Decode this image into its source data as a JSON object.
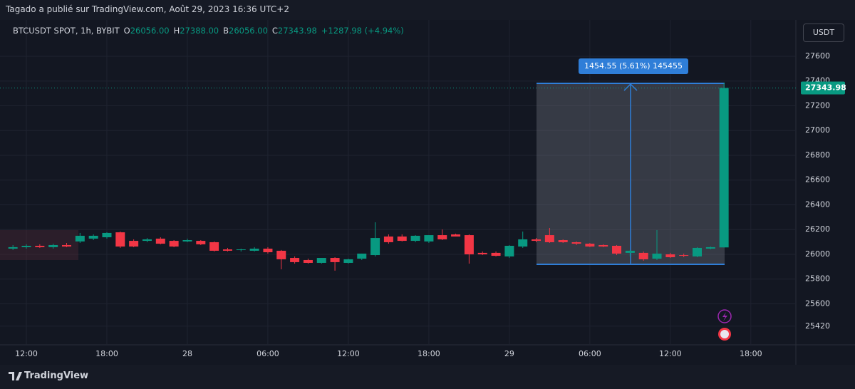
{
  "chart_data": {
    "type": "candlestick",
    "attribution": "Tagado a publié sur TradingView.com, Août 29, 2023 16:36 UTC+2",
    "symbol": "BTCUSDT SPOT, 1h, BYBIT",
    "ohlc_legend": [
      {
        "label": "O",
        "value": "26056.00"
      },
      {
        "label": "H",
        "value": "27388.00"
      },
      {
        "label": "B",
        "value": "26056.00"
      },
      {
        "label": "C",
        "value": "27343.98"
      }
    ],
    "change": "+1287.98 (+4.94%)",
    "currency": "USDT",
    "measure_label": "1454.55 (5.61%) 145455",
    "brand": "TradingView",
    "up_color": "#089981",
    "down_color": "#f23645",
    "grid": true,
    "ylim": [
      25292,
      27882
    ],
    "yticks": [
      25420,
      25600,
      25800,
      26000,
      26200,
      26400,
      26600,
      26800,
      27000,
      27200,
      27400,
      27600
    ],
    "categories": [
      null,
      "12:00",
      null,
      null,
      null,
      null,
      null,
      "18:00",
      null,
      null,
      null,
      null,
      null,
      "28",
      null,
      null,
      null,
      null,
      null,
      "06:00",
      null,
      null,
      null,
      null,
      null,
      "12:00",
      null,
      null,
      null,
      null,
      null,
      "18:00",
      null,
      null,
      null,
      null,
      null,
      "29",
      null,
      null,
      null,
      null,
      null,
      "06:00",
      null,
      null,
      null,
      null,
      null,
      "12:00",
      null,
      null,
      null,
      null,
      null,
      "18:00",
      null,
      null
    ],
    "open": [
      26046,
      26058,
      26069,
      26058,
      26075,
      26104,
      26127,
      26138,
      26178,
      26109,
      26109,
      26127,
      26109,
      26104,
      26109,
      26098,
      26040,
      26035,
      26029,
      26046,
      26029,
      25971,
      25954,
      25931,
      25971,
      25931,
      25965,
      25994,
      26144,
      26144,
      26109,
      26104,
      26155,
      26161,
      26155,
      26012,
      26012,
      25983,
      26063,
      26121,
      26155,
      26115,
      26098,
      26086,
      26075,
      26069,
      26012,
      26012,
      25965,
      26000,
      25994,
      25983,
      26046,
      26056.0,
      null,
      null,
      null,
      null
    ],
    "high": [
      26075,
      26081,
      26081,
      26086,
      26092,
      26173,
      26161,
      26178,
      26184,
      26121,
      26132,
      26138,
      26115,
      26127,
      26115,
      26104,
      26052,
      26046,
      26058,
      26058,
      26035,
      25983,
      25965,
      25971,
      25977,
      25965,
      26006,
      26259,
      26161,
      26161,
      26155,
      26155,
      26201,
      26167,
      26161,
      26023,
      26023,
      26075,
      26184,
      26132,
      26213,
      26121,
      26104,
      26092,
      26081,
      26075,
      26035,
      26023,
      26196,
      26012,
      26006,
      26058,
      26063,
      27388.0,
      null,
      null,
      null,
      null
    ],
    "low": [
      26035,
      26046,
      26052,
      26046,
      26058,
      26092,
      26115,
      26127,
      26052,
      26058,
      26098,
      26081,
      26058,
      26098,
      26075,
      26023,
      26023,
      26023,
      26023,
      26006,
      25879,
      25925,
      25925,
      25925,
      25868,
      25925,
      25954,
      25983,
      26086,
      26104,
      26098,
      26092,
      26115,
      26144,
      25925,
      25994,
      25983,
      25971,
      26052,
      26098,
      26092,
      26092,
      26075,
      26058,
      26058,
      25994,
      25983,
      25948,
      25954,
      25971,
      25977,
      25977,
      26040,
      26056.0,
      null,
      null,
      null,
      null
    ],
    "close": [
      26058,
      26069,
      26058,
      26075,
      26063,
      26150,
      26150,
      26173,
      26063,
      26063,
      26121,
      26086,
      26063,
      26115,
      26081,
      26029,
      26029,
      26040,
      26046,
      26017,
      25960,
      25937,
      25931,
      25971,
      25937,
      25960,
      26006,
      26132,
      26098,
      26109,
      26150,
      26155,
      26121,
      26144,
      26000,
      26000,
      25988,
      26069,
      26121,
      26109,
      26098,
      26098,
      26086,
      26063,
      26063,
      26006,
      26029,
      25960,
      26006,
      25977,
      25988,
      26052,
      26058,
      27343.98,
      null,
      null,
      null,
      null
    ]
  }
}
